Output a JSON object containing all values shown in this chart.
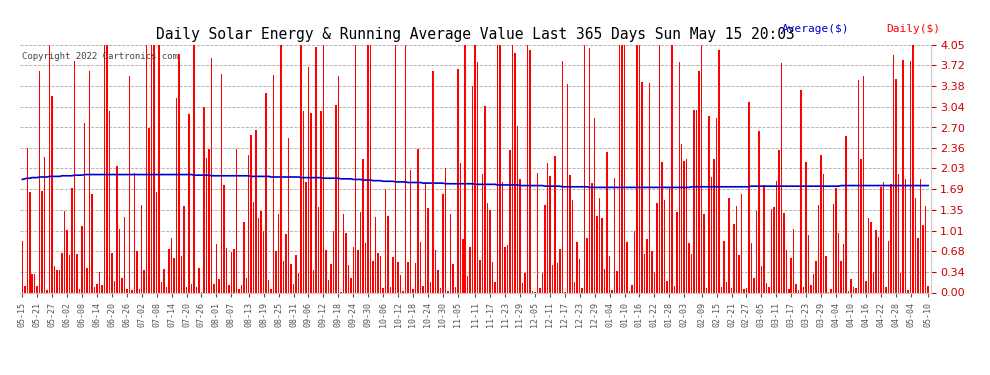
{
  "title": "Daily Solar Energy & Running Average Value Last 365 Days Sun May 15 20:03",
  "copyright": "Copyright 2022 Cartronics.com",
  "legend_avg": "Average($)",
  "legend_daily": "Daily($)",
  "ylabel_right_ticks": [
    0.0,
    0.34,
    0.68,
    1.01,
    1.35,
    1.69,
    2.03,
    2.36,
    2.7,
    3.04,
    3.38,
    3.72,
    4.05
  ],
  "ylim": [
    0.0,
    4.05
  ],
  "bar_color": "#ff0000",
  "avg_color": "#0000cc",
  "bg_color": "#ffffff",
  "grid_color": "#aaaaaa",
  "title_color": "#000000",
  "copyright_color": "#444444",
  "x_labels": [
    "05-15",
    "05-21",
    "05-27",
    "06-02",
    "06-08",
    "06-14",
    "06-20",
    "06-26",
    "07-02",
    "07-08",
    "07-14",
    "07-20",
    "07-26",
    "08-01",
    "08-07",
    "08-13",
    "08-19",
    "08-25",
    "08-31",
    "09-06",
    "09-12",
    "09-18",
    "09-24",
    "09-30",
    "10-06",
    "10-12",
    "10-18",
    "10-24",
    "10-30",
    "11-05",
    "11-11",
    "11-17",
    "11-23",
    "11-29",
    "12-05",
    "12-11",
    "12-17",
    "12-23",
    "12-29",
    "01-04",
    "01-10",
    "01-16",
    "01-22",
    "01-28",
    "02-03",
    "02-09",
    "02-15",
    "02-21",
    "02-27",
    "03-05",
    "03-11",
    "03-17",
    "03-23",
    "03-29",
    "04-04",
    "04-10",
    "04-16",
    "04-22",
    "04-28",
    "05-04",
    "05-10"
  ],
  "n_bars": 365,
  "avg_values": [
    1.85,
    1.86,
    1.87,
    1.87,
    1.88,
    1.88,
    1.88,
    1.89,
    1.89,
    1.89,
    1.89,
    1.9,
    1.9,
    1.9,
    1.9,
    1.9,
    1.91,
    1.91,
    1.91,
    1.91,
    1.91,
    1.92,
    1.92,
    1.92,
    1.92,
    1.93,
    1.93,
    1.93,
    1.93,
    1.93,
    1.93,
    1.93,
    1.93,
    1.93,
    1.93,
    1.93,
    1.93,
    1.93,
    1.93,
    1.93,
    1.93,
    1.93,
    1.93,
    1.93,
    1.93,
    1.93,
    1.93,
    1.93,
    1.93,
    1.93,
    1.93,
    1.93,
    1.93,
    1.93,
    1.93,
    1.93,
    1.93,
    1.93,
    1.93,
    1.93,
    1.93,
    1.93,
    1.93,
    1.93,
    1.93,
    1.93,
    1.93,
    1.93,
    1.93,
    1.92,
    1.92,
    1.92,
    1.92,
    1.92,
    1.92,
    1.92,
    1.91,
    1.91,
    1.91,
    1.91,
    1.91,
    1.91,
    1.91,
    1.91,
    1.91,
    1.91,
    1.91,
    1.91,
    1.91,
    1.91,
    1.91,
    1.91,
    1.9,
    1.9,
    1.9,
    1.9,
    1.9,
    1.9,
    1.9,
    1.9,
    1.89,
    1.89,
    1.89,
    1.89,
    1.89,
    1.89,
    1.89,
    1.89,
    1.89,
    1.89,
    1.89,
    1.89,
    1.88,
    1.88,
    1.88,
    1.88,
    1.88,
    1.88,
    1.88,
    1.88,
    1.88,
    1.87,
    1.87,
    1.87,
    1.87,
    1.87,
    1.87,
    1.87,
    1.86,
    1.86,
    1.86,
    1.86,
    1.86,
    1.85,
    1.85,
    1.85,
    1.85,
    1.84,
    1.84,
    1.84,
    1.84,
    1.83,
    1.83,
    1.83,
    1.83,
    1.82,
    1.82,
    1.82,
    1.82,
    1.82,
    1.81,
    1.81,
    1.81,
    1.81,
    1.81,
    1.8,
    1.8,
    1.8,
    1.8,
    1.8,
    1.8,
    1.79,
    1.79,
    1.79,
    1.79,
    1.79,
    1.79,
    1.79,
    1.79,
    1.79,
    1.78,
    1.78,
    1.78,
    1.78,
    1.78,
    1.78,
    1.78,
    1.78,
    1.78,
    1.78,
    1.78,
    1.78,
    1.77,
    1.77,
    1.77,
    1.77,
    1.77,
    1.77,
    1.77,
    1.77,
    1.77,
    1.76,
    1.76,
    1.76,
    1.76,
    1.76,
    1.76,
    1.76,
    1.76,
    1.76,
    1.75,
    1.75,
    1.75,
    1.75,
    1.75,
    1.75,
    1.75,
    1.75,
    1.75,
    1.75,
    1.74,
    1.74,
    1.74,
    1.74,
    1.74,
    1.74,
    1.74,
    1.73,
    1.73,
    1.73,
    1.73,
    1.73,
    1.73,
    1.73,
    1.73,
    1.73,
    1.73,
    1.73,
    1.72,
    1.72,
    1.72,
    1.72,
    1.72,
    1.72,
    1.72,
    1.72,
    1.72,
    1.72,
    1.72,
    1.72,
    1.72,
    1.72,
    1.72,
    1.72,
    1.72,
    1.72,
    1.72,
    1.72,
    1.72,
    1.72,
    1.72,
    1.72,
    1.72,
    1.72,
    1.72,
    1.72,
    1.72,
    1.72,
    1.72,
    1.72,
    1.72,
    1.72,
    1.72,
    1.72,
    1.72,
    1.72,
    1.72,
    1.72,
    1.72,
    1.73,
    1.73,
    1.73,
    1.73,
    1.73,
    1.73,
    1.73,
    1.73,
    1.73,
    1.73,
    1.73,
    1.73,
    1.73,
    1.73,
    1.73,
    1.73,
    1.73,
    1.73,
    1.73,
    1.73,
    1.73,
    1.73,
    1.73,
    1.73,
    1.74,
    1.74,
    1.74,
    1.74,
    1.74,
    1.74,
    1.74,
    1.74,
    1.74,
    1.74,
    1.74,
    1.74,
    1.74,
    1.74,
    1.74,
    1.74,
    1.74,
    1.74,
    1.74,
    1.74,
    1.74,
    1.74,
    1.74,
    1.74,
    1.74,
    1.74,
    1.74,
    1.74,
    1.74,
    1.74,
    1.74,
    1.74,
    1.74,
    1.74,
    1.74,
    1.74,
    1.75,
    1.75,
    1.75,
    1.75,
    1.75,
    1.75,
    1.75,
    1.75,
    1.75,
    1.75,
    1.75,
    1.75,
    1.75,
    1.75,
    1.75,
    1.75,
    1.75,
    1.75,
    1.75,
    1.75,
    1.75,
    1.75,
    1.75,
    1.75,
    1.75,
    1.75,
    1.75,
    1.75,
    1.75,
    1.75,
    1.75,
    1.75,
    1.75,
    1.75,
    1.75,
    1.75
  ],
  "seed": 42,
  "bar_width": 0.6
}
